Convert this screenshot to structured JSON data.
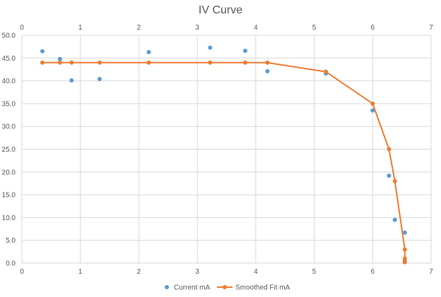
{
  "chart_data": {
    "type": "scatter",
    "title": "IV Curve",
    "xlabel": "",
    "ylabel": "",
    "xlim": [
      0,
      7
    ],
    "ylim": [
      0,
      50
    ],
    "x_ticks": [
      "0",
      "1",
      "2",
      "3",
      "4",
      "5",
      "6",
      "7"
    ],
    "y_ticks": [
      "0.0",
      "5.0",
      "10.0",
      "15.0",
      "20.0",
      "25.0",
      "30.0",
      "35.0",
      "40.0",
      "45.0",
      "50.0"
    ],
    "grid": true,
    "legend_position": "bottom",
    "series": [
      {
        "name": "Current mA",
        "style": "markers",
        "color": "#5B9BD5",
        "points": [
          [
            0.35,
            46.5
          ],
          [
            0.65,
            44.8
          ],
          [
            0.85,
            40.1
          ],
          [
            1.33,
            40.4
          ],
          [
            2.17,
            46.3
          ],
          [
            3.22,
            47.3
          ],
          [
            3.82,
            46.6
          ],
          [
            4.2,
            42.1
          ],
          [
            5.2,
            41.6
          ],
          [
            6.0,
            33.5
          ],
          [
            6.28,
            19.2
          ],
          [
            6.38,
            9.5
          ],
          [
            6.55,
            6.7
          ],
          [
            6.55,
            0.5
          ]
        ]
      },
      {
        "name": "Smoothed Fit mA",
        "style": "line-markers",
        "color": "#ED7D31",
        "points": [
          [
            0.35,
            44.0
          ],
          [
            0.65,
            44.0
          ],
          [
            0.85,
            44.0
          ],
          [
            1.33,
            44.0
          ],
          [
            2.17,
            44.0
          ],
          [
            3.22,
            44.0
          ],
          [
            3.82,
            44.0
          ],
          [
            4.2,
            44.0
          ],
          [
            5.2,
            42.0
          ],
          [
            6.0,
            35.0
          ],
          [
            6.28,
            25.0
          ],
          [
            6.38,
            18.0
          ],
          [
            6.55,
            3.0
          ],
          [
            6.55,
            1.0
          ],
          [
            6.55,
            0.2
          ]
        ]
      }
    ]
  }
}
